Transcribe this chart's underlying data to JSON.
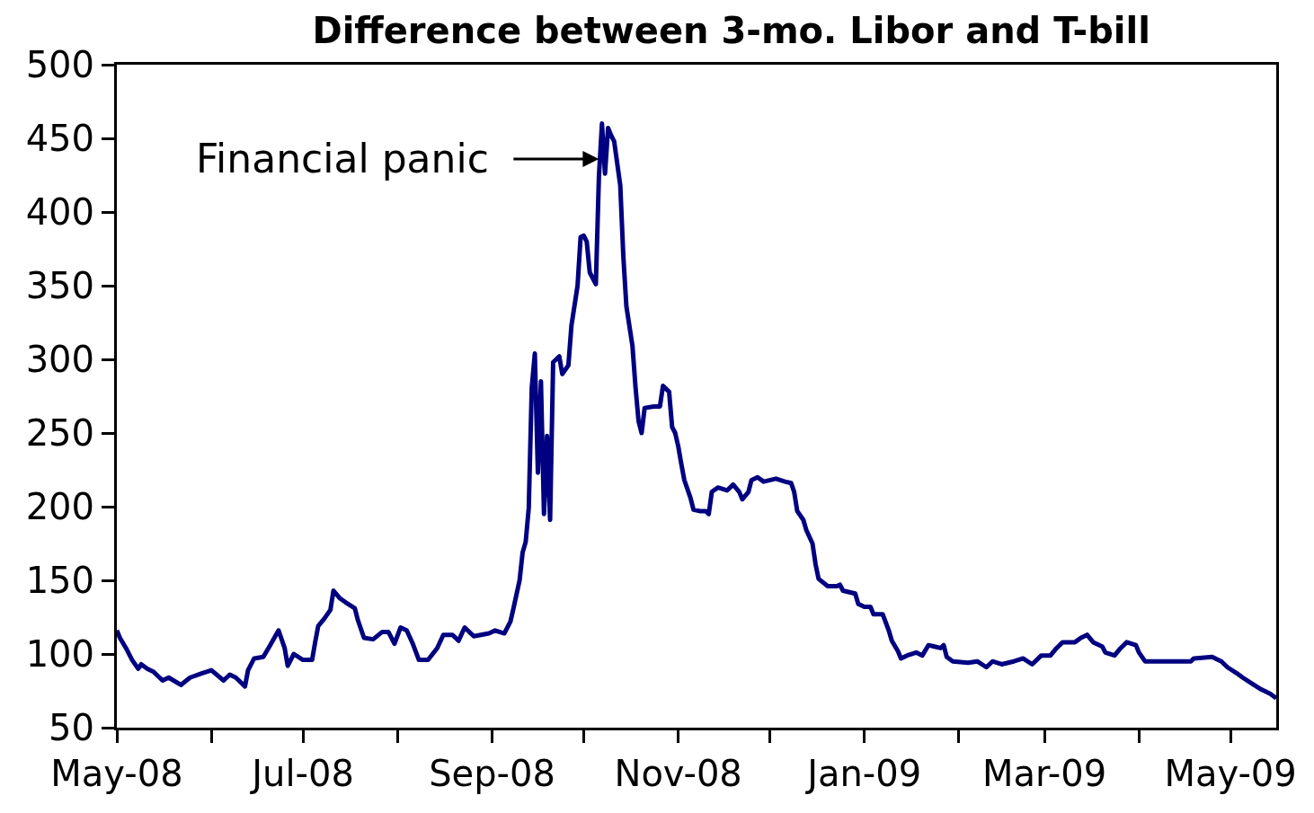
{
  "chart_data": {
    "type": "line",
    "title": "Difference between 3-mo. Libor and T-bill",
    "x": [
      "2008-05-01",
      "2008-05-02",
      "2008-05-04",
      "2008-05-06",
      "2008-05-08",
      "2008-05-09",
      "2008-05-11",
      "2008-05-13",
      "2008-05-16",
      "2008-05-18",
      "2008-05-22",
      "2008-05-25",
      "2008-05-29",
      "2008-06-01",
      "2008-06-05",
      "2008-06-07",
      "2008-06-09",
      "2008-06-12",
      "2008-06-13",
      "2008-06-15",
      "2008-06-18",
      "2008-06-20",
      "2008-06-23",
      "2008-06-25",
      "2008-06-26",
      "2008-06-28",
      "2008-07-01",
      "2008-07-04",
      "2008-07-05",
      "2008-07-06",
      "2008-07-08",
      "2008-07-10",
      "2008-07-11",
      "2008-07-13",
      "2008-07-15",
      "2008-07-18",
      "2008-07-19",
      "2008-07-21",
      "2008-07-24",
      "2008-07-27",
      "2008-07-29",
      "2008-07-31",
      "2008-08-02",
      "2008-08-04",
      "2008-08-06",
      "2008-08-08",
      "2008-08-11",
      "2008-08-14",
      "2008-08-16",
      "2008-08-19",
      "2008-08-21",
      "2008-08-23",
      "2008-08-26",
      "2008-08-31",
      "2008-09-02",
      "2008-09-05",
      "2008-09-07",
      "2008-09-08",
      "2008-09-10",
      "2008-09-11",
      "2008-09-12",
      "2008-09-13",
      "2008-09-14",
      "2008-09-15",
      "2008-09-16",
      "2008-09-17",
      "2008-09-18",
      "2008-09-19",
      "2008-09-20",
      "2008-09-21",
      "2008-09-23",
      "2008-09-24",
      "2008-09-26",
      "2008-09-27",
      "2008-09-29",
      "2008-09-30",
      "2008-10-01",
      "2008-10-02",
      "2008-10-03",
      "2008-10-05",
      "2008-10-06",
      "2008-10-07",
      "2008-10-08",
      "2008-10-09",
      "2008-10-10",
      "2008-10-11",
      "2008-10-12",
      "2008-10-13",
      "2008-10-14",
      "2008-10-15",
      "2008-10-17",
      "2008-10-18",
      "2008-10-19",
      "2008-10-20",
      "2008-10-21",
      "2008-10-24",
      "2008-10-26",
      "2008-10-27",
      "2008-10-29",
      "2008-10-30",
      "2008-10-31",
      "2008-11-01",
      "2008-11-02",
      "2008-11-03",
      "2008-11-05",
      "2008-11-06",
      "2008-11-08",
      "2008-11-10",
      "2008-11-11",
      "2008-11-12",
      "2008-11-14",
      "2008-11-17",
      "2008-11-19",
      "2008-11-21",
      "2008-11-22",
      "2008-11-24",
      "2008-11-25",
      "2008-11-27",
      "2008-11-29",
      "2008-12-03",
      "2008-12-06",
      "2008-12-08",
      "2008-12-09",
      "2008-12-10",
      "2008-12-12",
      "2008-12-13",
      "2008-12-15",
      "2008-12-16",
      "2008-12-17",
      "2008-12-20",
      "2008-12-23",
      "2008-12-24",
      "2008-12-25",
      "2008-12-29",
      "2008-12-30",
      "2009-01-01",
      "2009-01-03",
      "2009-01-04",
      "2009-01-07",
      "2009-01-09",
      "2009-01-10",
      "2009-01-12",
      "2009-01-13",
      "2009-01-15",
      "2009-01-18",
      "2009-01-20",
      "2009-01-22",
      "2009-01-24",
      "2009-01-26",
      "2009-01-27",
      "2009-01-28",
      "2009-01-30",
      "2009-02-04",
      "2009-02-07",
      "2009-02-10",
      "2009-02-12",
      "2009-02-15",
      "2009-02-19",
      "2009-02-22",
      "2009-02-25",
      "2009-02-28",
      "2009-03-03",
      "2009-03-05",
      "2009-03-07",
      "2009-03-11",
      "2009-03-13",
      "2009-03-15",
      "2009-03-17",
      "2009-03-20",
      "2009-03-21",
      "2009-03-24",
      "2009-03-26",
      "2009-03-28",
      "2009-03-31",
      "2009-04-01",
      "2009-04-03",
      "2009-04-18",
      "2009-04-19",
      "2009-04-25",
      "2009-04-28",
      "2009-04-30",
      "2009-05-03",
      "2009-05-05",
      "2009-05-08",
      "2009-05-11",
      "2009-05-14",
      "2009-05-16"
    ],
    "series": [
      {
        "color": "#000080",
        "values": [
          116,
          111,
          104,
          96,
          90,
          93,
          90,
          88,
          82,
          84,
          79,
          84,
          87,
          89,
          82,
          86,
          84,
          78,
          89,
          97,
          98,
          105,
          116,
          104,
          92,
          100,
          96,
          96,
          108,
          119,
          124,
          130,
          143,
          138,
          135,
          131,
          123,
          111,
          110,
          115,
          115,
          107,
          118,
          116,
          107,
          96,
          96,
          104,
          113,
          113,
          109,
          118,
          112,
          114,
          116,
          114,
          122,
          131,
          150,
          169,
          176,
          199,
          281,
          304,
          223,
          285,
          195,
          248,
          191,
          298,
          302,
          290,
          296,
          323,
          350,
          383,
          384,
          380,
          359,
          351,
          424,
          460,
          426,
          457,
          452,
          448,
          433,
          418,
          370,
          336,
          309,
          281,
          258,
          250,
          267,
          268,
          268,
          282,
          278,
          254,
          250,
          241,
          229,
          218,
          206,
          198,
          197,
          197,
          195,
          210,
          213,
          211,
          215,
          210,
          205,
          210,
          218,
          220,
          217,
          219,
          217,
          216,
          210,
          197,
          191,
          184,
          175,
          161,
          151,
          146,
          146,
          147,
          143,
          141,
          134,
          132,
          132,
          127,
          127,
          116,
          109,
          102,
          97,
          99,
          101,
          99,
          106,
          105,
          104,
          106,
          98,
          95,
          94,
          95,
          91,
          95,
          93,
          95,
          97,
          93,
          99,
          99,
          104,
          108,
          108,
          111,
          113,
          108,
          105,
          101,
          99,
          104,
          108,
          106,
          101,
          95,
          95,
          97,
          98,
          95,
          91,
          87,
          84,
          80,
          76,
          73,
          70
        ]
      }
    ],
    "xlim": [
      "2008-05-01",
      "2009-05-16"
    ],
    "xticks": [
      {
        "value": "2008-05-01",
        "label": "May-08"
      },
      {
        "value": "2008-06-01",
        "label": null
      },
      {
        "value": "2008-07-01",
        "label": "Jul-08"
      },
      {
        "value": "2008-08-01",
        "label": null
      },
      {
        "value": "2008-09-01",
        "label": "Sep-08"
      },
      {
        "value": "2008-10-01",
        "label": null
      },
      {
        "value": "2008-11-01",
        "label": "Nov-08"
      },
      {
        "value": "2008-12-01",
        "label": null
      },
      {
        "value": "2009-01-01",
        "label": "Jan-09"
      },
      {
        "value": "2009-02-01",
        "label": null
      },
      {
        "value": "2009-03-01",
        "label": "Mar-09"
      },
      {
        "value": "2009-04-01",
        "label": null
      },
      {
        "value": "2009-05-01",
        "label": "May-09"
      }
    ],
    "ylim": [
      50,
      500
    ],
    "yticks": [
      50,
      100,
      150,
      200,
      250,
      300,
      350,
      400,
      450,
      500
    ],
    "annotations": [
      {
        "text": "Financial panic",
        "x": "2008-10-06",
        "y": 436
      }
    ],
    "line_style": "solid"
  }
}
